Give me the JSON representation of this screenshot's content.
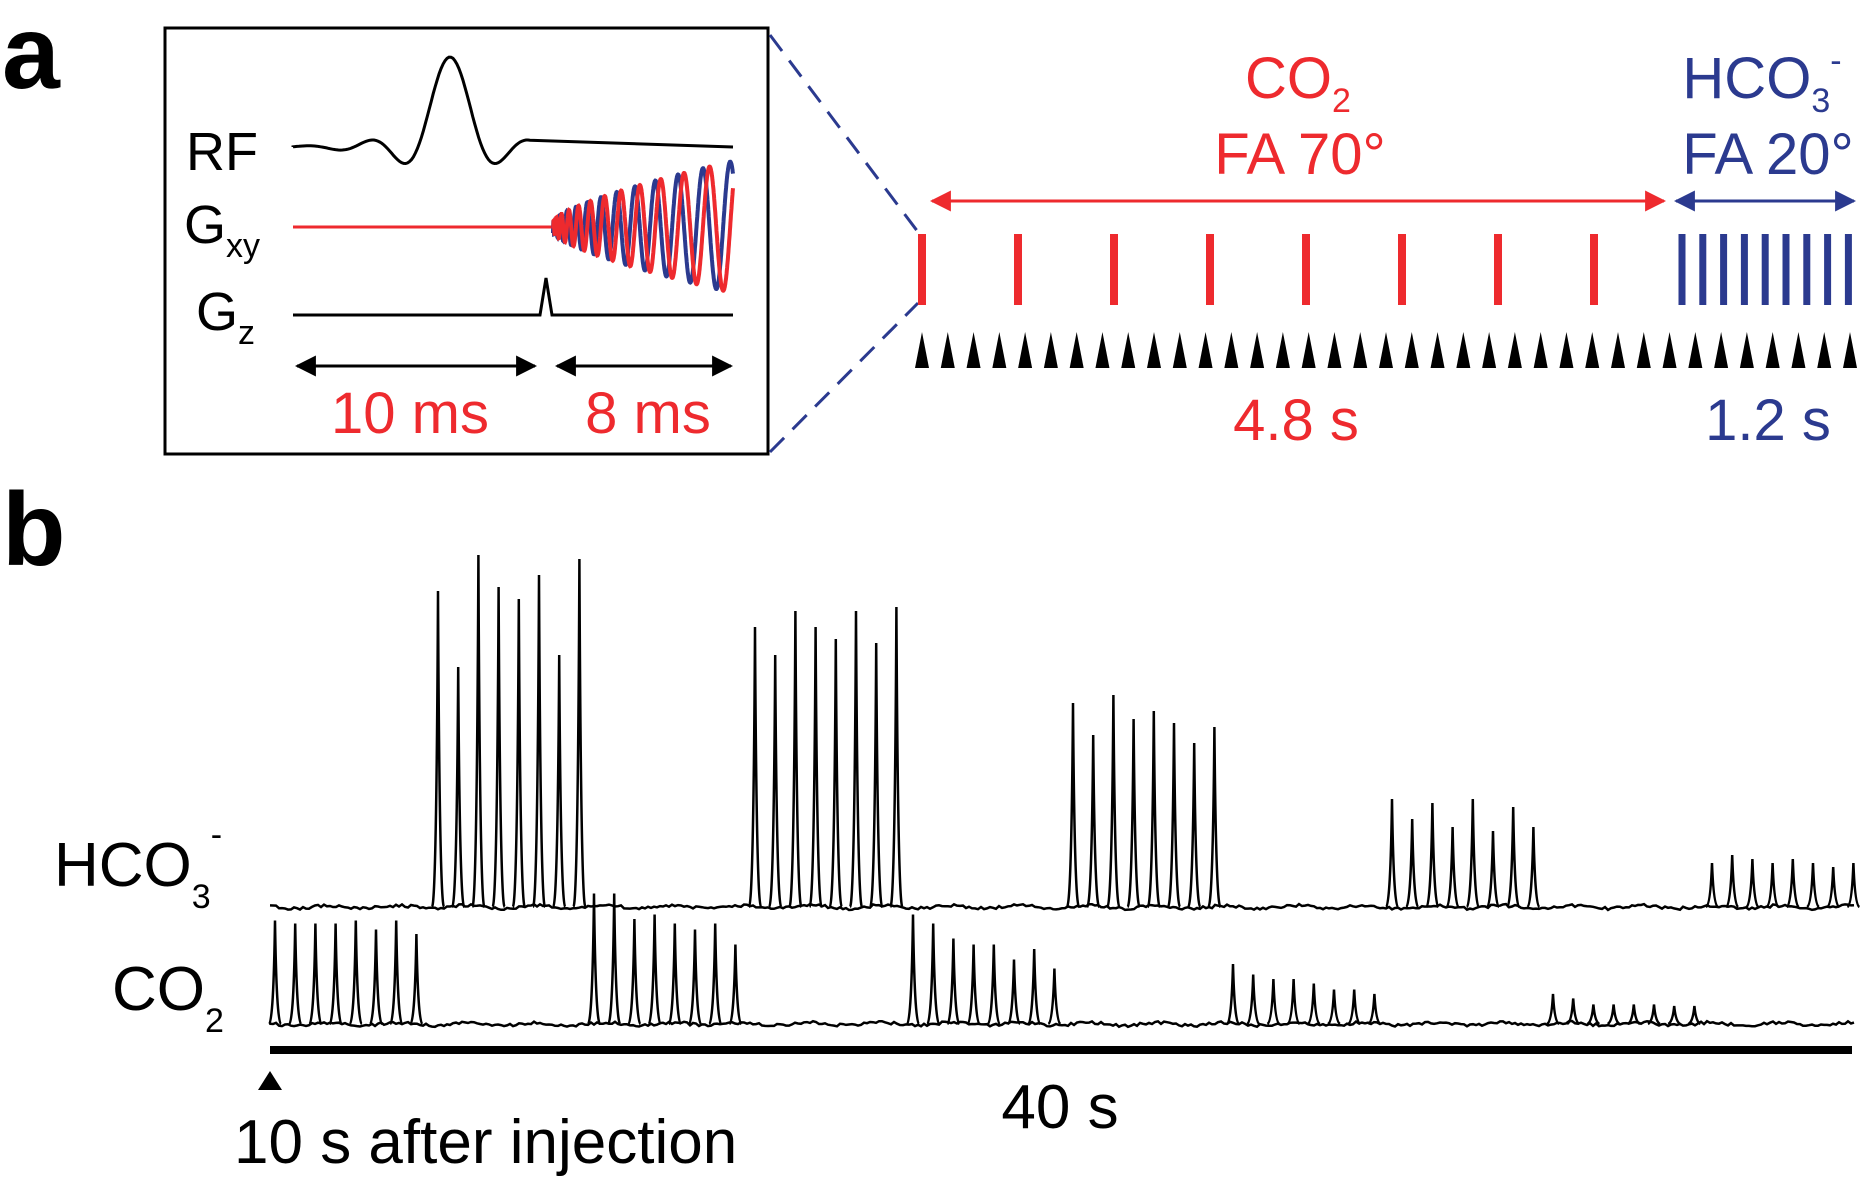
{
  "colors": {
    "co2": "#ee2a2e",
    "hco3": "#2b3a8f",
    "ink": "#000000"
  },
  "panel_a": {
    "label": "a",
    "inset": {
      "rf_label": "RF",
      "gxy_label": {
        "main": "G",
        "sub": "xy"
      },
      "gz_label": {
        "main": "G",
        "sub": "z"
      },
      "duration_1": "10 ms",
      "duration_2": "8 ms"
    },
    "co2_block": {
      "title": {
        "main": "CO",
        "sub": "2"
      },
      "flip_angle": "FA 70°",
      "duration": "4.8 s",
      "pulse_count": 8
    },
    "hco3_block": {
      "title": {
        "main": "HCO",
        "sub": "3",
        "sup": "-"
      },
      "flip_angle": "FA 20°",
      "duration": "1.2 s",
      "pulse_count": 9
    },
    "acquisition_marker_count": 37
  },
  "panel_b": {
    "label": "b",
    "hco3_label": {
      "main": "HCO",
      "sub": "3",
      "sup": "-"
    },
    "co2_label": {
      "main": "CO",
      "sub": "2"
    },
    "scale_bar_label": "40 s",
    "injection_label": "10 s after injection",
    "hco3_blocks": [
      [
        0.79,
        0.6,
        0.88,
        0.8,
        0.77,
        0.83,
        0.63,
        0.87
      ],
      [
        0.7,
        0.63,
        0.74,
        0.7,
        0.67,
        0.74,
        0.66,
        0.75
      ],
      [
        0.51,
        0.43,
        0.53,
        0.47,
        0.49,
        0.46,
        0.41,
        0.45
      ],
      [
        0.27,
        0.22,
        0.26,
        0.2,
        0.27,
        0.19,
        0.25,
        0.2
      ],
      [
        0.11,
        0.13,
        0.12,
        0.11,
        0.12,
        0.11,
        0.1,
        0.11
      ]
    ],
    "co2_blocks": [
      [
        0.69,
        0.67,
        0.67,
        0.67,
        0.69,
        0.63,
        0.69,
        0.6
      ],
      [
        0.87,
        0.87,
        0.7,
        0.73,
        0.67,
        0.63,
        0.67,
        0.53
      ],
      [
        0.73,
        0.67,
        0.57,
        0.53,
        0.53,
        0.43,
        0.5,
        0.37
      ],
      [
        0.4,
        0.33,
        0.3,
        0.3,
        0.27,
        0.23,
        0.23,
        0.2
      ],
      [
        0.2,
        0.17,
        0.13,
        0.13,
        0.13,
        0.13,
        0.12,
        0.12
      ]
    ]
  }
}
